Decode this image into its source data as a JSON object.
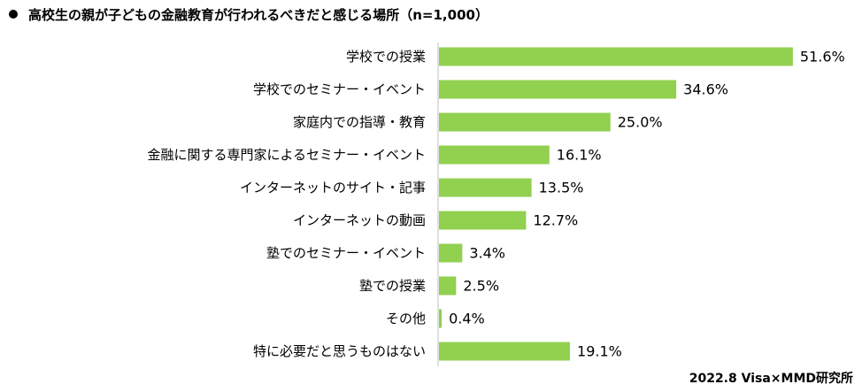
{
  "chart_data": {
    "type": "bar",
    "orientation": "horizontal",
    "title": "高校生の親が子どもの金融教育が行われるべきだと感じる場所（n=1,000）",
    "unit": "%",
    "categories": [
      "学校での授業",
      "学校でのセミナー・イベント",
      "家庭内での指導・教育",
      "金融に関する専門家によるセミナー・イベント",
      "インターネットのサイト・記事",
      "インターネットの動画",
      "塾でのセミナー・イベント",
      "塾での授業",
      "その他",
      "特に必要だと思うものはない"
    ],
    "values": [
      51.6,
      34.6,
      25.0,
      16.1,
      13.5,
      12.7,
      3.4,
      2.5,
      0.4,
      19.1
    ],
    "value_labels": [
      "51.6%",
      "34.6%",
      "25.0%",
      "16.1%",
      "13.5%",
      "12.7%",
      "3.4%",
      "2.5%",
      "0.4%",
      "19.1%"
    ],
    "xlim": [
      0,
      60
    ],
    "axis_visible": false,
    "grid": false,
    "bar_color": "#92d050"
  },
  "source": "2022.8 Visa×MMD研究所"
}
